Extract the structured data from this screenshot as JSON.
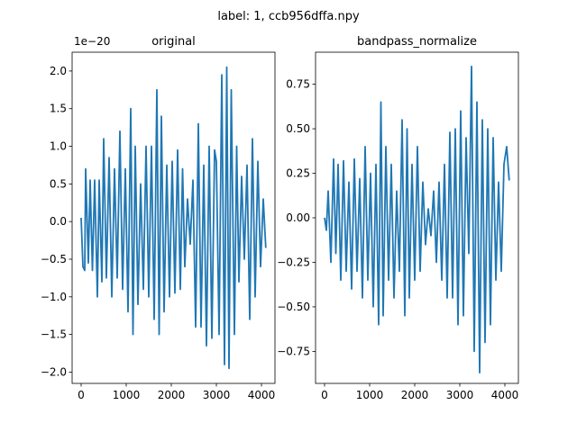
{
  "figure": {
    "suptitle": "label: 1, ccb956dffa.npy"
  },
  "colors": {
    "series": "#1f77b4",
    "axes": "#000000",
    "background": "#ffffff"
  },
  "chart_data": [
    {
      "type": "line",
      "title": "original",
      "xlabel": "",
      "ylabel": "",
      "offset_label": "1e−20",
      "xlim": [
        -200,
        4300
      ],
      "ylim": [
        -2.15,
        2.25
      ],
      "xticks": [
        0,
        1000,
        2000,
        3000,
        4000
      ],
      "xtick_labels": [
        "0",
        "1000",
        "2000",
        "3000",
        "4000"
      ],
      "yticks": [
        -2.0,
        -1.5,
        -1.0,
        -0.5,
        0.0,
        0.5,
        1.0,
        1.5,
        2.0
      ],
      "ytick_labels": [
        "−2.0",
        "−1.5",
        "−1.0",
        "−0.5",
        "0.0",
        "0.5",
        "1.0",
        "1.5",
        "2.0"
      ],
      "grid": false,
      "series": [
        {
          "x": [
            0,
            40,
            80,
            100,
            160,
            200,
            250,
            300,
            360,
            400,
            460,
            500,
            560,
            620,
            680,
            740,
            800,
            860,
            920,
            980,
            1040,
            1100,
            1150,
            1200,
            1260,
            1320,
            1380,
            1440,
            1500,
            1560,
            1620,
            1680,
            1730,
            1780,
            1840,
            1900,
            1960,
            2020,
            2080,
            2140,
            2200,
            2250,
            2300,
            2360,
            2420,
            2480,
            2540,
            2600,
            2660,
            2720,
            2780,
            2840,
            2900,
            2960,
            3000,
            3060,
            3120,
            3180,
            3230,
            3280,
            3330,
            3400,
            3450,
            3500,
            3560,
            3620,
            3680,
            3740,
            3800,
            3860,
            3920,
            3980,
            4040,
            4095
          ],
          "y": [
            0.05,
            -0.6,
            -0.65,
            0.7,
            -0.55,
            0.55,
            -0.65,
            0.55,
            -1.0,
            0.55,
            -0.8,
            1.1,
            -0.75,
            0.85,
            -1.0,
            0.7,
            -0.75,
            1.2,
            -0.9,
            0.7,
            -1.2,
            1.5,
            -1.5,
            1.0,
            -1.1,
            0.5,
            -0.9,
            1.0,
            -1.0,
            1.0,
            -1.3,
            1.75,
            -1.5,
            1.4,
            -1.2,
            0.75,
            -1.0,
            0.8,
            -0.95,
            0.95,
            -0.9,
            0.7,
            -0.6,
            0.3,
            -0.3,
            0.55,
            -1.4,
            1.3,
            -1.4,
            0.75,
            -1.65,
            1.0,
            -1.55,
            0.95,
            0.8,
            -1.5,
            1.95,
            -1.9,
            2.05,
            -1.95,
            1.75,
            -1.5,
            1.0,
            -0.8,
            0.6,
            -0.5,
            0.75,
            -1.3,
            1.1,
            -1.0,
            0.8,
            -0.6,
            0.3,
            -0.35
          ]
        }
      ]
    },
    {
      "type": "line",
      "title": "bandpass_normalize",
      "xlabel": "",
      "ylabel": "",
      "xlim": [
        -200,
        4300
      ],
      "ylim": [
        -0.93,
        0.93
      ],
      "xticks": [
        0,
        1000,
        2000,
        3000,
        4000
      ],
      "xtick_labels": [
        "0",
        "1000",
        "2000",
        "3000",
        "4000"
      ],
      "yticks": [
        -0.75,
        -0.5,
        -0.25,
        0.0,
        0.25,
        0.5,
        0.75
      ],
      "ytick_labels": [
        "−0.75",
        "−0.50",
        "−0.25",
        "0.00",
        "0.25",
        "0.50",
        "0.75"
      ],
      "grid": false,
      "series": [
        {
          "x": [
            0,
            40,
            80,
            140,
            200,
            250,
            300,
            360,
            420,
            480,
            540,
            600,
            660,
            720,
            780,
            840,
            900,
            960,
            1020,
            1080,
            1140,
            1200,
            1250,
            1300,
            1360,
            1420,
            1480,
            1540,
            1600,
            1660,
            1720,
            1780,
            1830,
            1880,
            1940,
            2000,
            2060,
            2120,
            2180,
            2240,
            2300,
            2360,
            2420,
            2480,
            2540,
            2600,
            2660,
            2720,
            2780,
            2840,
            2900,
            2960,
            3020,
            3080,
            3140,
            3200,
            3260,
            3320,
            3380,
            3440,
            3500,
            3560,
            3620,
            3680,
            3740,
            3800,
            3860,
            3920,
            3980,
            4040,
            4095
          ],
          "y": [
            0.0,
            -0.07,
            0.15,
            -0.25,
            0.33,
            -0.2,
            0.3,
            -0.35,
            0.32,
            -0.3,
            0.2,
            -0.4,
            0.33,
            -0.3,
            0.22,
            -0.45,
            0.4,
            -0.35,
            0.25,
            -0.5,
            0.3,
            -0.6,
            0.65,
            -0.55,
            0.4,
            -0.35,
            0.3,
            -0.45,
            0.15,
            -0.3,
            0.55,
            -0.55,
            0.5,
            -0.45,
            0.3,
            -0.35,
            0.4,
            -0.3,
            0.2,
            -0.15,
            0.05,
            -0.1,
            0.15,
            -0.25,
            0.2,
            -0.35,
            0.3,
            -0.45,
            0.48,
            -0.45,
            0.5,
            -0.6,
            0.6,
            -0.55,
            0.45,
            -0.2,
            0.85,
            -0.75,
            0.65,
            -0.87,
            0.55,
            -0.7,
            0.5,
            -0.6,
            0.45,
            -0.35,
            0.2,
            -0.3,
            0.3,
            0.4,
            0.21
          ]
        }
      ]
    }
  ]
}
